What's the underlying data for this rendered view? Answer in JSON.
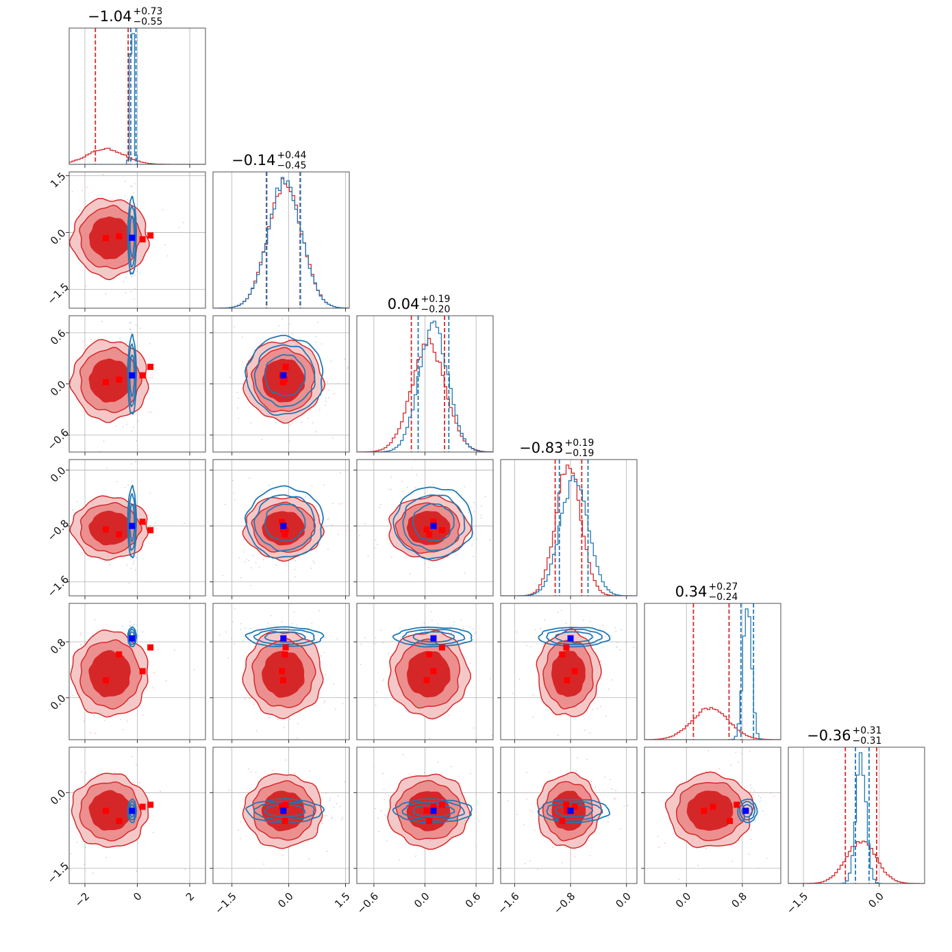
{
  "chart_data": {
    "type": "corner",
    "title": "",
    "colors": {
      "red": "#d62728",
      "blue": "#1f77b4",
      "truth_blue": "#0000ff",
      "truth_red": "#ff0000"
    },
    "grid": true,
    "parameters": [
      {
        "index": 0,
        "range": [
          -2.6,
          2.6
        ],
        "ticks": [
          -2,
          0,
          2
        ],
        "tick_labels": [
          "−2",
          "0",
          "2"
        ],
        "title": {
          "median": "−1.04",
          "plus": "+0.73",
          "minus": "−0.55"
        }
      },
      {
        "index": 1,
        "range": [
          -2.0,
          1.6
        ],
        "ticks": [
          -1.5,
          0.0,
          1.5
        ],
        "tick_labels": [
          "−1.5",
          "0.0",
          "1.5"
        ],
        "title": {
          "median": "−0.14",
          "plus": "+0.44",
          "minus": "−0.45"
        }
      },
      {
        "index": 2,
        "range": [
          -0.8,
          0.8
        ],
        "ticks": [
          -0.6,
          0.0,
          0.6
        ],
        "tick_labels": [
          "−0.6",
          "0.0",
          "0.6"
        ],
        "title": {
          "median": "0.04",
          "plus": "+0.19",
          "minus": "−0.20"
        }
      },
      {
        "index": 3,
        "range": [
          -1.8,
          0.15
        ],
        "ticks": [
          -1.6,
          -0.8,
          0.0
        ],
        "tick_labels": [
          "−1.6",
          "−0.8",
          "0.0"
        ],
        "title": {
          "median": "−0.83",
          "plus": "+0.19",
          "minus": "−0.19"
        }
      },
      {
        "index": 4,
        "range": [
          -0.6,
          1.35
        ],
        "ticks": [
          0.0,
          0.8
        ],
        "tick_labels": [
          "0.0",
          "0.8"
        ],
        "title": {
          "median": "0.34",
          "plus": "+0.27",
          "minus": "−0.24"
        }
      },
      {
        "index": 5,
        "range": [
          -1.8,
          0.9
        ],
        "ticks": [
          -1.5,
          0.0
        ],
        "tick_labels": [
          "−1.5",
          "0.0"
        ],
        "title": {
          "median": "−0.36",
          "plus": "+0.31",
          "minus": "−0.31"
        }
      }
    ],
    "truth_blue": [
      -0.2,
      -0.14,
      0.1,
      -0.8,
      0.85,
      -0.36
    ],
    "truth_red_points": [
      [
        -1.2,
        -0.15,
        0.02,
        -0.85,
        0.25,
        -0.36
      ],
      [
        -0.7,
        -0.1,
        0.05,
        -0.92,
        0.62,
        -0.56
      ],
      [
        0.2,
        -0.18,
        0.1,
        -0.74,
        0.38,
        -0.28
      ],
      [
        0.5,
        -0.08,
        0.2,
        -0.86,
        0.72,
        -0.24
      ]
    ],
    "marginals": [
      {
        "red": {
          "center": -1.2,
          "sigma": 0.7,
          "quantiles": [
            -1.6,
            -0.35
          ]
        },
        "blue": {
          "center": -0.2,
          "sigma": 0.06,
          "quantiles": [
            -0.25,
            -0.05
          ]
        }
      },
      {
        "red": {
          "center": -0.1,
          "sigma": 0.44,
          "quantiles": [
            -0.59,
            0.3
          ]
        },
        "blue": {
          "center": -0.1,
          "sigma": 0.44,
          "quantiles": [
            -0.58,
            0.31
          ]
        }
      },
      {
        "red": {
          "center": 0.04,
          "sigma": 0.2,
          "quantiles": [
            -0.16,
            0.23
          ]
        },
        "blue": {
          "center": 0.1,
          "sigma": 0.17,
          "quantiles": [
            -0.08,
            0.28
          ]
        }
      },
      {
        "red": {
          "center": -0.83,
          "sigma": 0.18,
          "quantiles": [
            -1.02,
            -0.64
          ]
        },
        "blue": {
          "center": -0.75,
          "sigma": 0.2,
          "quantiles": [
            -0.96,
            -0.55
          ]
        }
      },
      {
        "red": {
          "center": 0.34,
          "sigma": 0.26,
          "quantiles": [
            0.1,
            0.61
          ]
        },
        "blue": {
          "center": 0.87,
          "sigma": 0.06,
          "quantiles": [
            0.78,
            0.96
          ]
        }
      },
      {
        "red": {
          "center": -0.36,
          "sigma": 0.3,
          "quantiles": [
            -0.67,
            -0.05
          ]
        },
        "blue": {
          "center": -0.36,
          "sigma": 0.1,
          "quantiles": [
            -0.47,
            -0.2
          ]
        }
      }
    ],
    "posteriors": {
      "red": {
        "center": [
          -1.04,
          -0.14,
          0.04,
          -0.83,
          0.34,
          -0.36
        ],
        "sigma": [
          0.62,
          0.44,
          0.2,
          0.19,
          0.26,
          0.31
        ]
      },
      "blue": {
        "center": [
          -0.2,
          -0.1,
          0.1,
          -0.75,
          0.87,
          -0.36
        ],
        "sigma": [
          0.07,
          0.44,
          0.2,
          0.22,
          0.06,
          0.1
        ]
      }
    }
  }
}
